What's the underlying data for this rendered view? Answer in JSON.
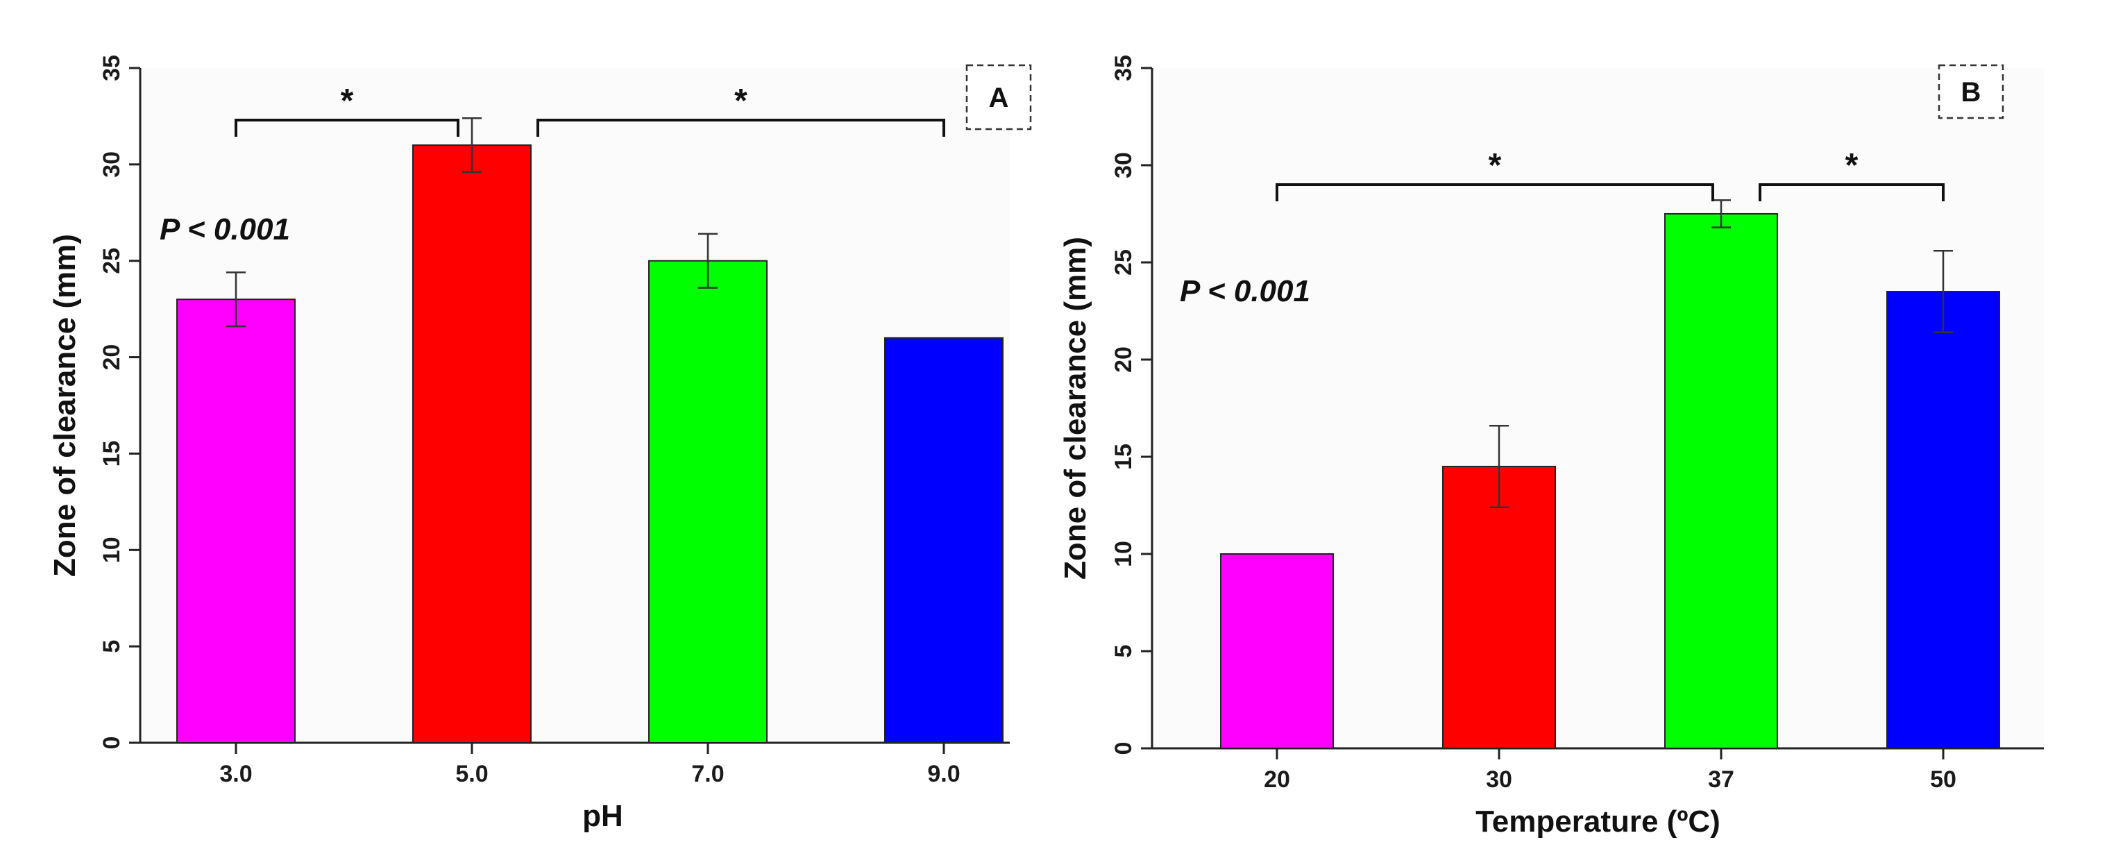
{
  "chart_data": [
    {
      "type": "bar",
      "panel": "A",
      "title": "",
      "xlabel": "pH",
      "ylabel": "Zone of clearance (mm)",
      "categories": [
        "3.0",
        "5.0",
        "7.0",
        "9.0"
      ],
      "values": [
        23,
        31,
        25,
        21
      ],
      "errors": [
        1.4,
        1.4,
        1.4,
        0
      ],
      "colors": [
        "#ff00ff",
        "#ff0000",
        "#00ff00",
        "#0000ff"
      ],
      "ylim": [
        0,
        35
      ],
      "yticks": [
        0,
        5,
        10,
        15,
        20,
        25,
        30,
        35
      ],
      "annotation": "P < 0.001",
      "brackets": [
        {
          "from": 0,
          "to": 1,
          "label": "*"
        },
        {
          "from": 1,
          "to": 3,
          "label": "*"
        }
      ],
      "bracket_levels": [
        32.3,
        32.3
      ],
      "panel_label": "A"
    },
    {
      "type": "bar",
      "panel": "B",
      "title": "",
      "xlabel": "Temperature (ºC)",
      "ylabel": "Zone of clearance (mm)",
      "categories": [
        "20",
        "30",
        "37",
        "50"
      ],
      "values": [
        10,
        14.5,
        27.5,
        23.5
      ],
      "errors": [
        0,
        2.1,
        0.7,
        2.1
      ],
      "colors": [
        "#ff00ff",
        "#ff0000",
        "#00ff00",
        "#0000ff"
      ],
      "ylim": [
        0,
        35
      ],
      "yticks": [
        0,
        5,
        10,
        15,
        20,
        25,
        30,
        35
      ],
      "annotation": "P < 0.001",
      "brackets": [
        {
          "from": 0,
          "to": 2,
          "label": "*"
        },
        {
          "from": 2,
          "to": 3,
          "label": "*"
        }
      ],
      "bracket_levels": [
        29.0,
        29.0
      ],
      "panel_label": "B"
    }
  ]
}
